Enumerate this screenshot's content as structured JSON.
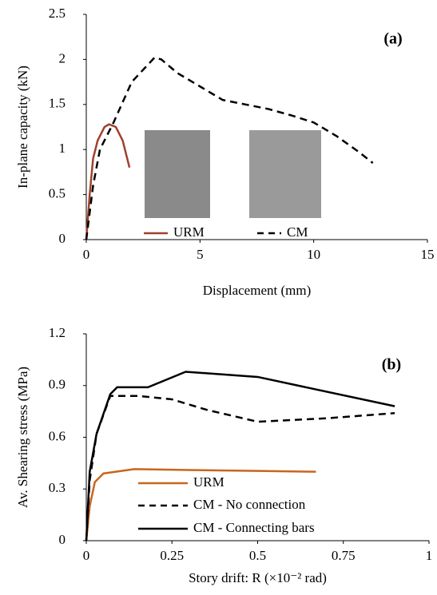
{
  "chart_data": [
    {
      "type": "line",
      "annotation": "(a)",
      "x_label": "Displacement (mm)",
      "y_label": "In-plane capacity (kN)",
      "xlim": [
        0,
        15
      ],
      "xticks": [
        0,
        5,
        10,
        15
      ],
      "ylim": [
        0,
        2.5
      ],
      "yticks": [
        0,
        0.5,
        1,
        1.5,
        2,
        2.5
      ],
      "series": [
        {
          "name": "URM",
          "color": "#a0402e",
          "dashed": false,
          "x": [
            0,
            0.15,
            0.3,
            0.5,
            0.8,
            1.0,
            1.3,
            1.6,
            1.9
          ],
          "values": [
            0,
            0.5,
            0.9,
            1.1,
            1.25,
            1.28,
            1.25,
            1.1,
            0.8
          ]
        },
        {
          "name": "CM",
          "color": "#000000",
          "dashed": true,
          "x": [
            0,
            0.3,
            0.6,
            1.2,
            2,
            3,
            3.3,
            4,
            5,
            6,
            7,
            8,
            9,
            10,
            11,
            12,
            12.6
          ],
          "values": [
            0,
            0.6,
            1.0,
            1.3,
            1.75,
            2.02,
            2.0,
            1.85,
            1.7,
            1.55,
            1.5,
            1.45,
            1.38,
            1.3,
            1.15,
            0.97,
            0.85
          ]
        }
      ]
    },
    {
      "type": "line",
      "annotation": "(b)",
      "x_label": "Story drift: R (×10⁻² rad)",
      "y_label": "Av. Shearing stress (MPa)",
      "xlim": [
        0,
        1
      ],
      "xticks": [
        0,
        0.25,
        0.5,
        0.75,
        1
      ],
      "ylim": [
        0,
        1.2
      ],
      "yticks": [
        0,
        0.3,
        0.6,
        0.9,
        1.2
      ],
      "series": [
        {
          "name": "URM",
          "color": "#c8651e",
          "dashed": false,
          "x": [
            0,
            0.01,
            0.025,
            0.05,
            0.14,
            0.3,
            0.5,
            0.67
          ],
          "values": [
            0,
            0.2,
            0.34,
            0.39,
            0.415,
            0.41,
            0.405,
            0.4
          ]
        },
        {
          "name": "CM - No connection",
          "color": "#000000",
          "dashed": true,
          "x": [
            0,
            0.01,
            0.03,
            0.07,
            0.15,
            0.25,
            0.35,
            0.5,
            0.7,
            0.9
          ],
          "values": [
            0,
            0.35,
            0.62,
            0.84,
            0.84,
            0.82,
            0.76,
            0.69,
            0.71,
            0.74
          ]
        },
        {
          "name": "CM - Connecting bars",
          "color": "#000000",
          "dashed": false,
          "x": [
            0,
            0.01,
            0.03,
            0.07,
            0.09,
            0.18,
            0.29,
            0.5,
            0.9
          ],
          "values": [
            0,
            0.4,
            0.62,
            0.85,
            0.89,
            0.89,
            0.98,
            0.95,
            0.78
          ]
        }
      ]
    }
  ]
}
